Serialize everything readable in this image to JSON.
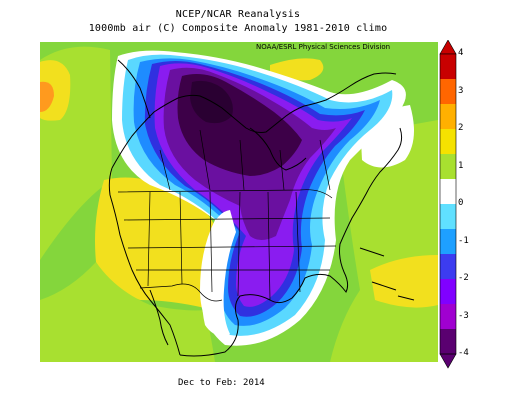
{
  "header": {
    "title_line1": "NCEP/NCAR Reanalysis",
    "title_line2": "1000mb air (C) Composite Anomaly 1981-2010 climo",
    "credit": "NOAA/ESRL Physical Sciences Division"
  },
  "footer": {
    "period": "Dec to Feb: 2014"
  },
  "legend": {
    "ticks": [
      "4",
      "3",
      "2",
      "1",
      "0",
      "-1",
      "-2",
      "-3",
      "-4"
    ],
    "colors": [
      "#c80000",
      "#ff6600",
      "#ffb000",
      "#f5e200",
      "#a8e030",
      "#ffffff",
      "#60e0ff",
      "#1ea0ff",
      "#3c3cf0",
      "#8000ff",
      "#a000d0",
      "#5a0070"
    ]
  },
  "map": {
    "colors": {
      "land_outline": "#000000",
      "strong_negative": "#3d0048",
      "negative": "#6a10a0",
      "purple": "#8a1cf0",
      "blue": "#3030e0",
      "mid_blue": "#1e8cff",
      "light_blue": "#5ad8ff",
      "white": "#ffffff",
      "light_green": "#c8f06a",
      "green": "#84d63c",
      "yellow": "#f2e01e",
      "orange": "#ffb81e",
      "dark_orange": "#ff7c1a"
    }
  }
}
